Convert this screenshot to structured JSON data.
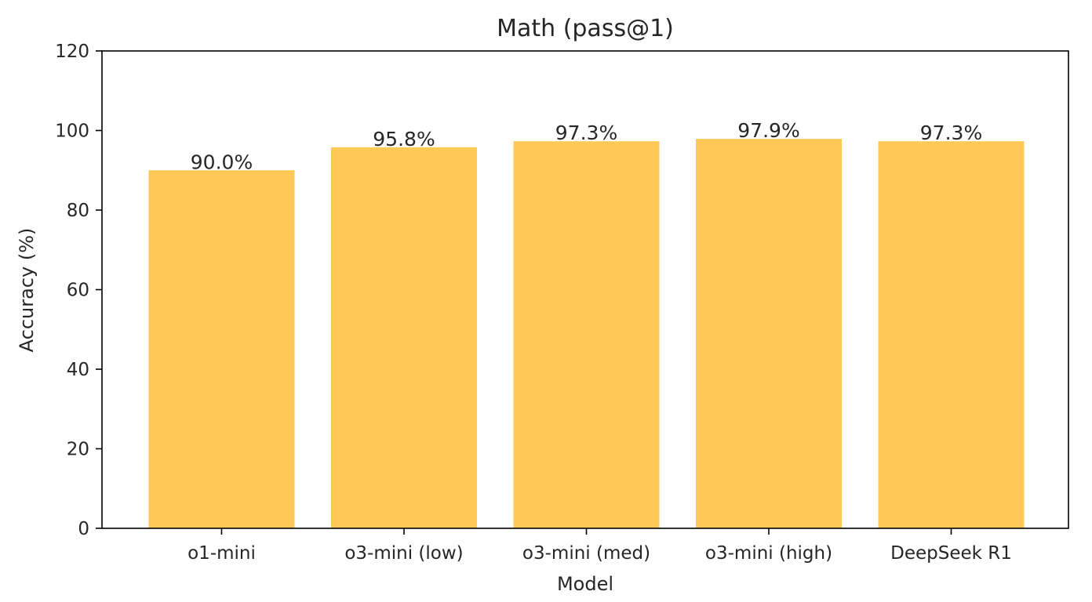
{
  "chart_data": {
    "type": "bar",
    "title": "Math (pass@1)",
    "xlabel": "Model",
    "ylabel": "Accuracy (%)",
    "categories": [
      "o1-mini",
      "o3-mini (low)",
      "o3-mini (med)",
      "o3-mini (high)",
      "DeepSeek R1"
    ],
    "values": [
      90.0,
      95.8,
      97.3,
      97.9,
      97.3
    ],
    "value_labels": [
      "90.0%",
      "95.8%",
      "97.3%",
      "97.9%",
      "97.3%"
    ],
    "ylim": [
      0,
      120
    ],
    "yticks": [
      0,
      20,
      40,
      60,
      80,
      100,
      120
    ],
    "grid": false,
    "bar_color": "#FFC857"
  }
}
